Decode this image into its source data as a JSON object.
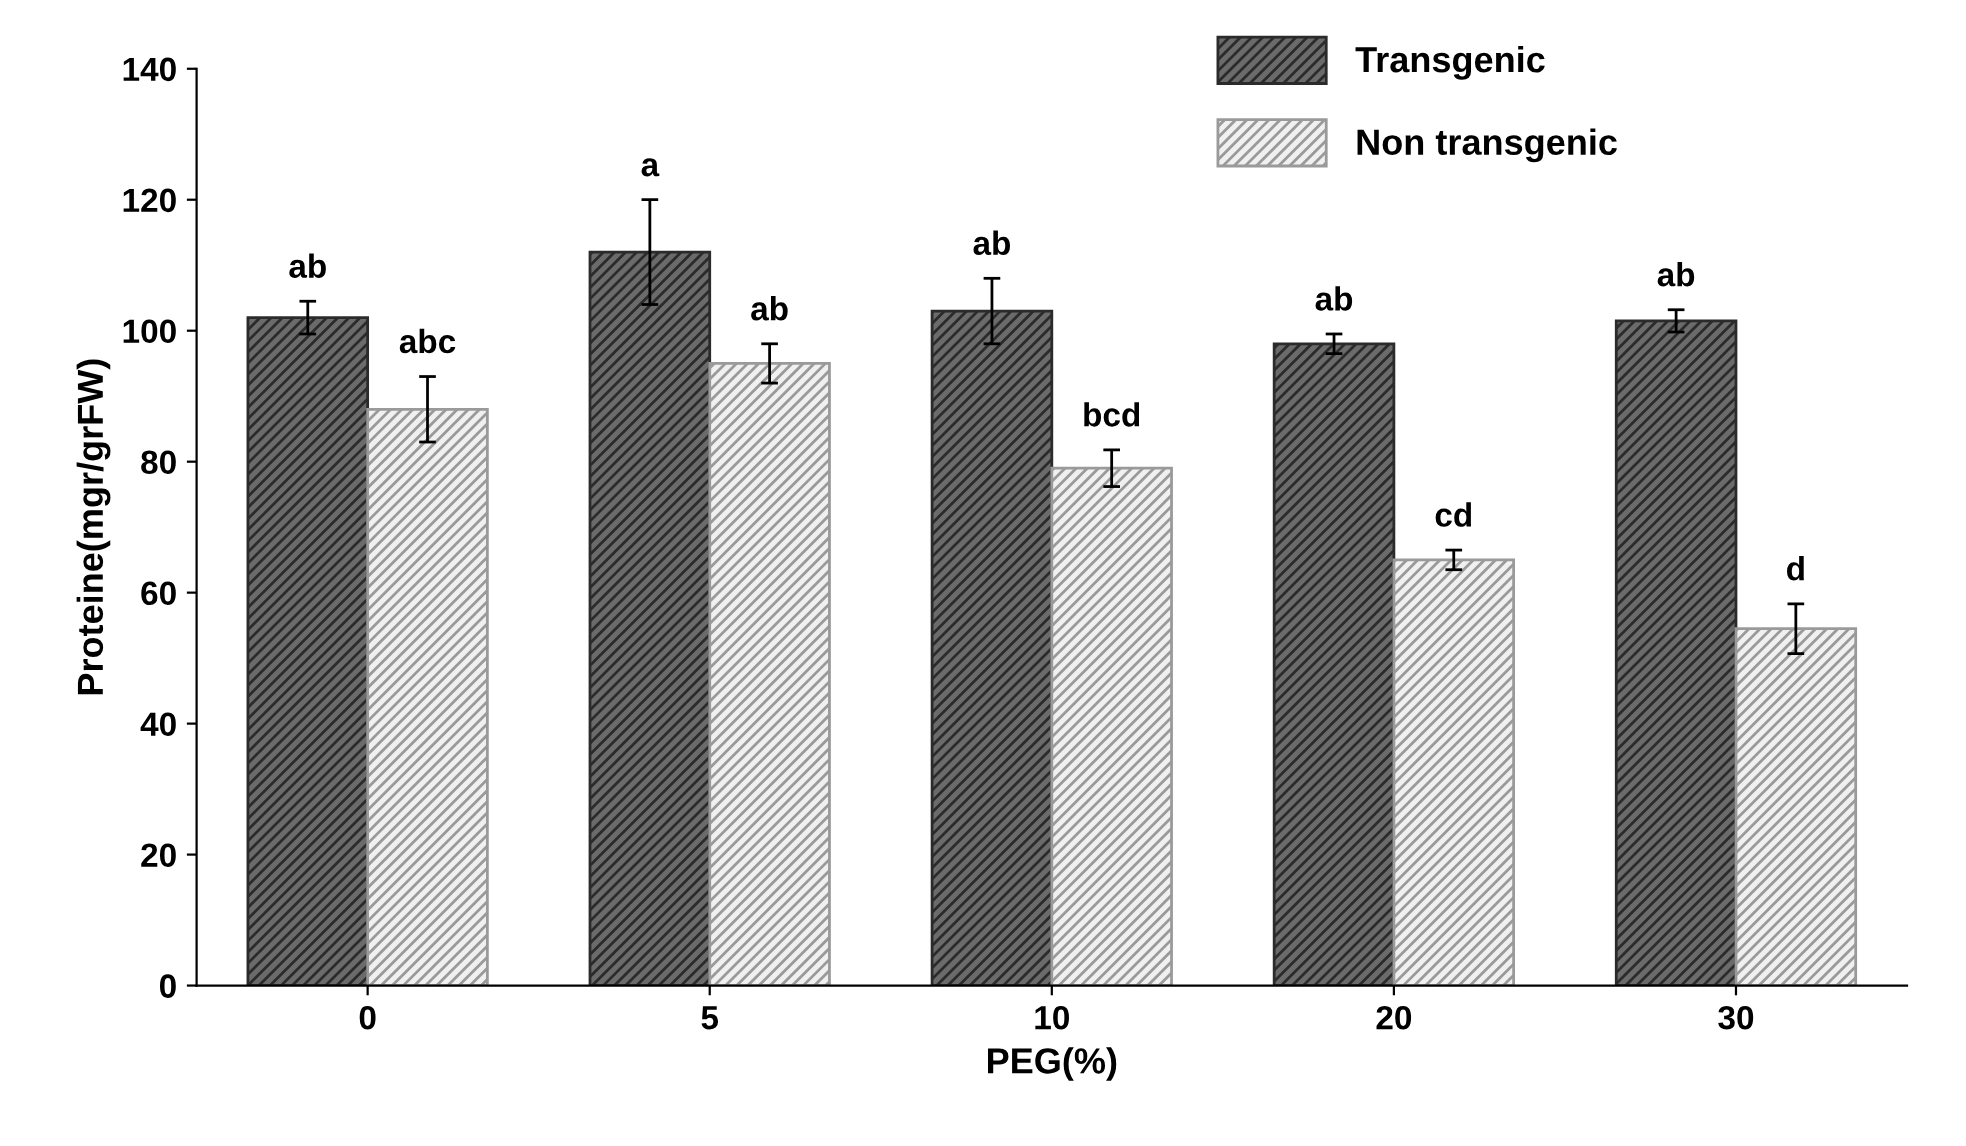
{
  "chart_data": {
    "type": "bar",
    "xlabel": "PEG(%)",
    "ylabel": "Proteine(mgr/grFW)",
    "categories": [
      "0",
      "5",
      "10",
      "20",
      "30"
    ],
    "series": [
      {
        "name": "Transgenic",
        "color": "#2b2b2b",
        "values": [
          102,
          112,
          103,
          98,
          101.5
        ],
        "errors": [
          2.5,
          8,
          5,
          1.5,
          1.7
        ]
      },
      {
        "name": "Non transgenic",
        "color": "#9a9a9a",
        "values": [
          88,
          95,
          79,
          65,
          54.5
        ],
        "errors": [
          5,
          3,
          2.8,
          1.5,
          3.8
        ]
      }
    ],
    "annotations": [
      "ab",
      "abc",
      "a",
      "ab",
      "ab",
      "bcd",
      "ab",
      "cd",
      "ab",
      "d"
    ],
    "ylim": [
      0,
      140
    ],
    "yticks": [
      0,
      20,
      40,
      60,
      80,
      100,
      120,
      140
    ],
    "grid": false,
    "legend": "top right"
  }
}
